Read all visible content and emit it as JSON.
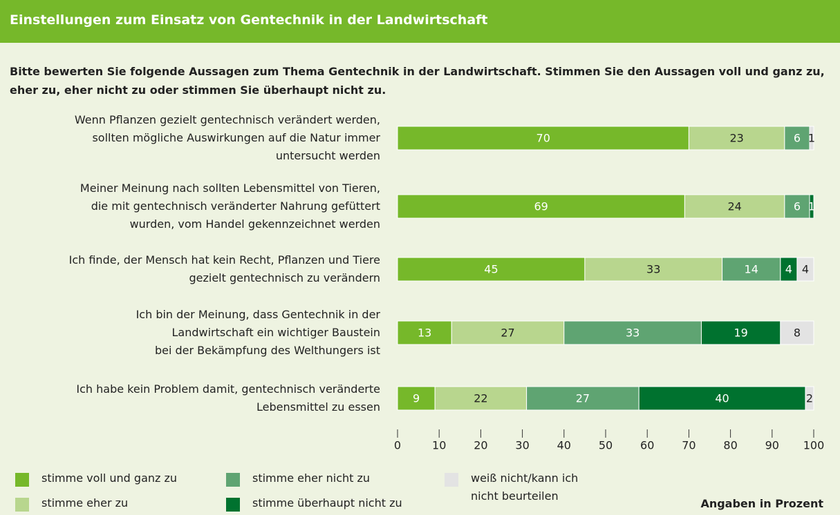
{
  "chart_data": {
    "type": "stacked_barh",
    "title": "Einstellungen zum Einsatz von Gentechnik in der Landwirtschaft",
    "subtitle": "Bitte bewerten Sie folgende Aussagen zum Thema Gentechnik in der Landwirtschaft. Stimmen Sie den Aussagen voll und ganz zu, eher zu, eher nicht zu oder stimmen Sie überhaupt nicht zu.",
    "categories": [
      "Wenn Pflanzen gezielt gentechnisch verändert werden,\nsollten mögliche Auswirkungen auf die Natur immer\nuntersucht werden",
      "Meiner Meinung nach sollten Lebensmittel von Tieren,\ndie mit gentechnisch veränderter Nahrung gefüttert\nwurden, vom Handel gekennzeichnet werden",
      "Ich finde, der Mensch hat kein Recht, Pflanzen und Tiere\ngezielt gentechnisch zu verändern",
      "Ich bin der Meinung, dass Gentechnik in der\nLandwirtschaft ein wichtiger Baustein\nbei der Bekämpfung des Welthungers ist",
      "Ich habe kein Problem damit, gentechnisch veränderte\nLebensmittel zu essen"
    ],
    "series": [
      {
        "name": "stimme voll und ganz zu",
        "color": "#76b82a",
        "values": [
          70,
          69,
          45,
          13,
          9
        ]
      },
      {
        "name": "stimme eher zu",
        "color": "#b8d68e",
        "values": [
          23,
          24,
          33,
          27,
          22
        ]
      },
      {
        "name": "stimme eher nicht zu",
        "color": "#5fa472",
        "values": [
          6,
          6,
          14,
          33,
          27
        ]
      },
      {
        "name": "stimme überhaupt nicht zu",
        "color": "#00722f",
        "values": [
          null,
          1,
          4,
          19,
          40
        ]
      },
      {
        "name": "weiß nicht/kann ich\nnicht beurteilen",
        "color": "#e3e3e3",
        "values": [
          1,
          null,
          4,
          8,
          2
        ]
      }
    ],
    "xlim": [
      0,
      100
    ],
    "xticks": [
      0,
      10,
      20,
      30,
      40,
      50,
      60,
      70,
      80,
      90,
      100
    ],
    "note": "Angaben in Prozent"
  }
}
